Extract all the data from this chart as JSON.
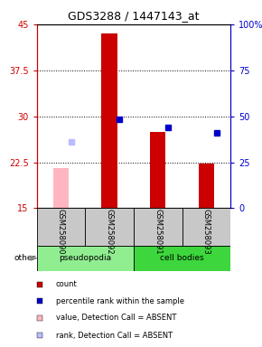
{
  "title": "GDS3288 / 1447143_at",
  "samples": [
    "GSM258090",
    "GSM258092",
    "GSM258091",
    "GSM258093"
  ],
  "groups": [
    "pseudopodia",
    "pseudopodia",
    "cell bodies",
    "cell bodies"
  ],
  "ylim_left": [
    15,
    45
  ],
  "ylim_right": [
    0,
    100
  ],
  "yticks_left": [
    15,
    22.5,
    30,
    37.5,
    45
  ],
  "yticks_right": [
    0,
    25,
    50,
    75,
    100
  ],
  "count_values": [
    null,
    43.5,
    27.5,
    22.3
  ],
  "count_absent": [
    21.5,
    null,
    null,
    null
  ],
  "rank_values": [
    null,
    29.5,
    28.2,
    27.3
  ],
  "rank_absent": [
    25.8,
    null,
    null,
    null
  ],
  "group_colors": {
    "pseudopodia": "#90EE90",
    "cell bodies": "#3DD63D"
  },
  "left_axis_color": "#CC0000",
  "right_axis_color": "#0000CC",
  "dotted_gridlines": [
    22.5,
    30,
    37.5
  ],
  "bar_width": 0.32,
  "marker_size": 4,
  "legend_items": [
    {
      "color": "#CC0000",
      "label": "count"
    },
    {
      "color": "#0000CC",
      "label": "percentile rank within the sample"
    },
    {
      "color": "#FFB6C1",
      "label": "value, Detection Call = ABSENT"
    },
    {
      "color": "#BBBBFF",
      "label": "rank, Detection Call = ABSENT"
    }
  ]
}
